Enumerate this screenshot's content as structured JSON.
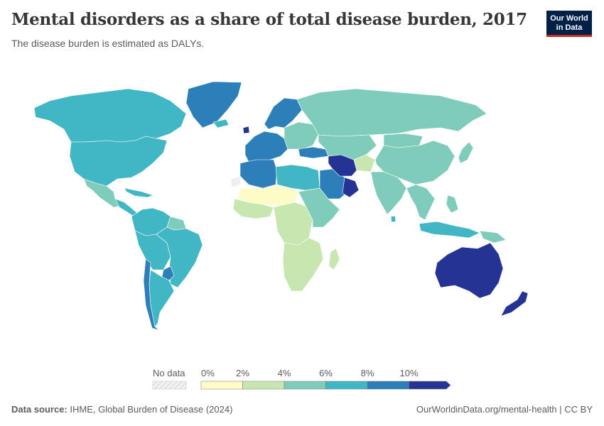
{
  "header": {
    "title": "Mental disorders as a share of total disease burden, 2017",
    "subtitle": "The disease burden is estimated as DALYs."
  },
  "logo": {
    "line1": "Our World",
    "line2": "in Data"
  },
  "legend": {
    "no_data_label": "No data",
    "ticks": [
      "0%",
      "2%",
      "4%",
      "6%",
      "8%",
      "10%"
    ],
    "bin_colors": [
      "#fdfcc7",
      "#c8e7b0",
      "#7fccbb",
      "#41b6c4",
      "#2c7fb8",
      "#253494"
    ],
    "no_data_color": "#eeeeee"
  },
  "footer": {
    "source_label": "Data source:",
    "source_text": "IHME, Global Burden of Disease (2024)",
    "url_text": "OurWorldinData.org/mental-health | CC BY"
  },
  "map_data": {
    "regions": [
      {
        "name": "Canada",
        "value_pct": 6.5
      },
      {
        "name": "United States",
        "value_pct": 6.8
      },
      {
        "name": "Mexico",
        "value_pct": 5.5
      },
      {
        "name": "Greenland",
        "value_pct": 8.5
      },
      {
        "name": "Brazil",
        "value_pct": 7.2
      },
      {
        "name": "Argentina",
        "value_pct": 7.0
      },
      {
        "name": "Chile",
        "value_pct": 8.2
      },
      {
        "name": "Paraguay",
        "value_pct": 8.5
      },
      {
        "name": "Russia",
        "value_pct": 5.0
      },
      {
        "name": "China",
        "value_pct": 5.0
      },
      {
        "name": "India",
        "value_pct": 5.2
      },
      {
        "name": "Iran",
        "value_pct": 10.5
      },
      {
        "name": "Oman",
        "value_pct": 10.5
      },
      {
        "name": "Saudi Arabia",
        "value_pct": 8.0
      },
      {
        "name": "Australia",
        "value_pct": 10.5
      },
      {
        "name": "New Zealand",
        "value_pct": 10.5
      },
      {
        "name": "Ireland",
        "value_pct": 10.5
      },
      {
        "name": "Scandinavia",
        "value_pct": 8.5
      },
      {
        "name": "Western Europe",
        "value_pct": 8.0
      },
      {
        "name": "Eastern Europe",
        "value_pct": 5.0
      },
      {
        "name": "Turkey",
        "value_pct": 8.5
      },
      {
        "name": "Central Asia",
        "value_pct": 5.0
      },
      {
        "name": "Afghanistan",
        "value_pct": 3.5
      },
      {
        "name": "Japan",
        "value_pct": 5.5
      },
      {
        "name": "Mongolia",
        "value_pct": 5.0
      },
      {
        "name": "Southeast Asia",
        "value_pct": 5.0
      },
      {
        "name": "Indonesia",
        "value_pct": 6.5
      },
      {
        "name": "Papua New Guinea",
        "value_pct": 4.5
      },
      {
        "name": "Philippines",
        "value_pct": 5.5
      },
      {
        "name": "Morocco/Algeria",
        "value_pct": 8.0
      },
      {
        "name": "Libya/Egypt",
        "value_pct": 7.0
      },
      {
        "name": "Sahel",
        "value_pct": 1.5
      },
      {
        "name": "West Africa",
        "value_pct": 3.0
      },
      {
        "name": "Central Africa",
        "value_pct": 3.0
      },
      {
        "name": "East Africa",
        "value_pct": 4.5
      },
      {
        "name": "Southern Africa",
        "value_pct": 3.5
      },
      {
        "name": "Madagascar",
        "value_pct": 3.5
      },
      {
        "name": "Western Sahara",
        "value_pct": null
      },
      {
        "name": "Colombia/Venezuela",
        "value_pct": 6.5
      },
      {
        "name": "Guianas",
        "value_pct": 4.5
      },
      {
        "name": "Peru/Bolivia",
        "value_pct": 6.5
      },
      {
        "name": "Central America",
        "value_pct": 6.5
      },
      {
        "name": "Caribbean",
        "value_pct": 6.5
      },
      {
        "name": "Iceland",
        "value_pct": 7.0
      },
      {
        "name": "Sri Lanka",
        "value_pct": 7.0
      }
    ]
  }
}
